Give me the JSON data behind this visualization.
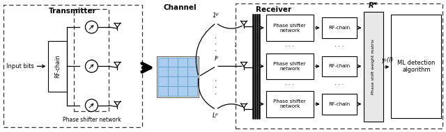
{
  "bg_color": "#ffffff",
  "ris_cell_color": "#aaccee",
  "ris_cell_border": "#5599bb",
  "title_tx": "Transmitter",
  "title_ch": "Channel",
  "title_rx": "Receiver",
  "label_input": "Input bits",
  "label_rfchain_tx": "RF-chain",
  "label_psn_tx": "Phase shifter network",
  "label_psn_rx": "Phase shifter\nnetwork",
  "label_rfchain_rx": "RF-chain",
  "label_psw": "Phase shift weight matrix",
  "label_R": "Rᴴ",
  "label_yr": "yᵣ(l)",
  "label_ml": "ML detection\nalgorithm",
  "label_l1": "1ᵖ",
  "label_lp": "lᵖ",
  "label_ln": "Lᵖ",
  "figsize": [
    6.4,
    1.9
  ],
  "dpi": 100
}
